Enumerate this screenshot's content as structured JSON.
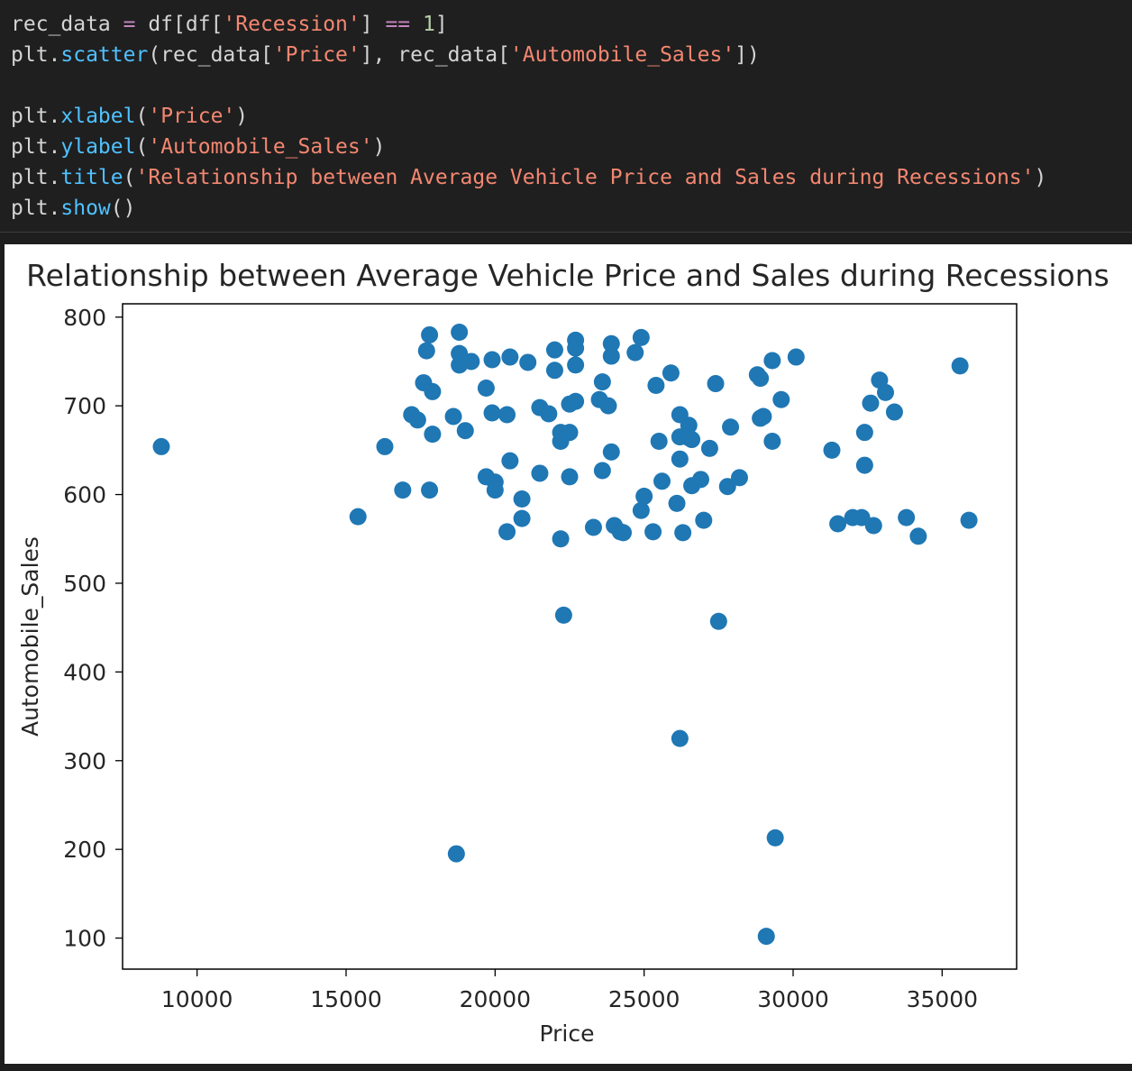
{
  "code": {
    "lines": [
      [
        "rec_data ",
        "=",
        " df[df[",
        "'Recession'",
        "] ",
        "==",
        " ",
        "1",
        "]"
      ],
      [
        "plt.",
        "scatter",
        "(rec_data[",
        "'Price'",
        "], rec_data[",
        "'Automobile_Sales'",
        "])"
      ],
      [
        ""
      ],
      [
        "plt.",
        "xlabel",
        "(",
        "'Price'",
        ")"
      ],
      [
        "plt.",
        "ylabel",
        "(",
        "'Automobile_Sales'",
        ")"
      ],
      [
        "plt.",
        "title",
        "(",
        "'Relationship between Average Vehicle Price and Sales during Recessions'",
        ")"
      ],
      [
        "plt.",
        "show",
        "()"
      ]
    ],
    "token_kinds": [
      [
        "plain",
        "op",
        "plain",
        "str",
        "plain",
        "op",
        "plain",
        "num",
        "plain"
      ],
      [
        "plain",
        "fn",
        "plain",
        "str",
        "plain",
        "str",
        "plain"
      ],
      [
        "plain"
      ],
      [
        "plain",
        "fn",
        "plain",
        "str",
        "plain"
      ],
      [
        "plain",
        "fn",
        "plain",
        "str",
        "plain"
      ],
      [
        "plain",
        "fn",
        "plain",
        "str",
        "plain"
      ],
      [
        "plain",
        "fn",
        "plain"
      ]
    ]
  },
  "chart_data": {
    "type": "scatter",
    "title": "Relationship between Average Vehicle Price and Sales during Recessions",
    "xlabel": "Price",
    "ylabel": "Automobile_Sales",
    "xlim": [
      7500,
      37500
    ],
    "ylim": [
      65,
      815
    ],
    "xticks": [
      10000,
      15000,
      20000,
      25000,
      30000,
      35000
    ],
    "yticks": [
      100,
      200,
      300,
      400,
      500,
      600,
      700,
      800
    ],
    "grid": false,
    "marker_color": "#1f77b4",
    "points": [
      [
        8800,
        654
      ],
      [
        15400,
        575
      ],
      [
        16300,
        654
      ],
      [
        16900,
        605
      ],
      [
        17200,
        690
      ],
      [
        17400,
        684
      ],
      [
        17600,
        726
      ],
      [
        17700,
        762
      ],
      [
        17800,
        780
      ],
      [
        17800,
        605
      ],
      [
        17900,
        668
      ],
      [
        17900,
        716
      ],
      [
        18600,
        688
      ],
      [
        18700,
        195
      ],
      [
        18800,
        783
      ],
      [
        18800,
        759
      ],
      [
        18800,
        746
      ],
      [
        19000,
        672
      ],
      [
        19200,
        750
      ],
      [
        19700,
        720
      ],
      [
        19700,
        620
      ],
      [
        19900,
        692
      ],
      [
        19900,
        752
      ],
      [
        20000,
        614
      ],
      [
        20000,
        605
      ],
      [
        20400,
        558
      ],
      [
        20400,
        690
      ],
      [
        20500,
        755
      ],
      [
        20500,
        638
      ],
      [
        20900,
        595
      ],
      [
        20900,
        573
      ],
      [
        21100,
        749
      ],
      [
        21500,
        624
      ],
      [
        21500,
        698
      ],
      [
        21800,
        691
      ],
      [
        22000,
        763
      ],
      [
        22000,
        740
      ],
      [
        22200,
        550
      ],
      [
        22200,
        670
      ],
      [
        22200,
        660
      ],
      [
        22300,
        464
      ],
      [
        22500,
        620
      ],
      [
        22500,
        670
      ],
      [
        22500,
        702
      ],
      [
        22700,
        705
      ],
      [
        22700,
        774
      ],
      [
        22700,
        765
      ],
      [
        22700,
        746
      ],
      [
        23300,
        563
      ],
      [
        23500,
        707
      ],
      [
        23600,
        727
      ],
      [
        23600,
        627
      ],
      [
        23800,
        700
      ],
      [
        23900,
        770
      ],
      [
        23900,
        756
      ],
      [
        23900,
        648
      ],
      [
        24000,
        565
      ],
      [
        24200,
        558
      ],
      [
        24300,
        557
      ],
      [
        24700,
        760
      ],
      [
        24900,
        777
      ],
      [
        24900,
        582
      ],
      [
        25000,
        598
      ],
      [
        25300,
        558
      ],
      [
        25400,
        723
      ],
      [
        25500,
        660
      ],
      [
        25600,
        615
      ],
      [
        25900,
        737
      ],
      [
        26100,
        590
      ],
      [
        26200,
        690
      ],
      [
        26200,
        665
      ],
      [
        26200,
        640
      ],
      [
        26200,
        325
      ],
      [
        26300,
        557
      ],
      [
        26500,
        664
      ],
      [
        26500,
        678
      ],
      [
        26600,
        662
      ],
      [
        26600,
        610
      ],
      [
        26900,
        617
      ],
      [
        27000,
        571
      ],
      [
        27200,
        652
      ],
      [
        27400,
        725
      ],
      [
        27500,
        457
      ],
      [
        27800,
        609
      ],
      [
        27900,
        676
      ],
      [
        28200,
        619
      ],
      [
        28800,
        735
      ],
      [
        28900,
        731
      ],
      [
        28900,
        686
      ],
      [
        29000,
        688
      ],
      [
        29100,
        102
      ],
      [
        29300,
        660
      ],
      [
        29300,
        751
      ],
      [
        29400,
        213
      ],
      [
        29600,
        707
      ],
      [
        30100,
        755
      ],
      [
        31300,
        650
      ],
      [
        31500,
        567
      ],
      [
        32000,
        574
      ],
      [
        32300,
        574
      ],
      [
        32400,
        670
      ],
      [
        32400,
        633
      ],
      [
        32600,
        703
      ],
      [
        32700,
        565
      ],
      [
        32900,
        729
      ],
      [
        33100,
        715
      ],
      [
        33400,
        693
      ],
      [
        33800,
        574
      ],
      [
        34200,
        553
      ],
      [
        35600,
        745
      ],
      [
        35900,
        571
      ]
    ]
  }
}
